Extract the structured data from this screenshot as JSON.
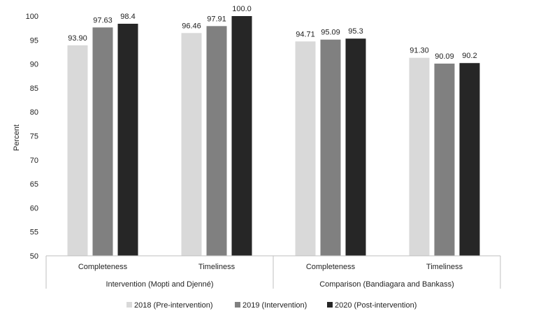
{
  "chart_data": {
    "type": "bar",
    "ylabel": "Percent",
    "ylim": [
      50,
      100
    ],
    "yticks": [
      "50",
      "55",
      "60",
      "65",
      "70",
      "75",
      "80",
      "85",
      "90",
      "95",
      "100"
    ],
    "groups": [
      {
        "label": "Intervention (Mopti and Djenné)",
        "categories": [
          "Completeness",
          "Timeliness"
        ]
      },
      {
        "label": "Comparison (Bandiagara and Bankass)",
        "categories": [
          "Completeness",
          "Timeliness"
        ]
      }
    ],
    "series": [
      {
        "name": "2018 (Pre-intervention)",
        "color": "#d9d9d9",
        "values": [
          93.9,
          96.46,
          94.71,
          91.3
        ],
        "labels": [
          "93.90",
          "96.46",
          "94.71",
          "91.30"
        ]
      },
      {
        "name": "2019 (Intervention)",
        "color": "#808080",
        "values": [
          97.63,
          97.91,
          95.09,
          90.09
        ],
        "labels": [
          "97.63",
          "97.91",
          "95.09",
          "90.09"
        ]
      },
      {
        "name": "2020 (Post-intervention)",
        "color": "#262626",
        "values": [
          98.4,
          100.0,
          95.3,
          90.2
        ],
        "labels": [
          "98.4",
          "100.0",
          "95.3",
          "90.2"
        ]
      }
    ],
    "legend_position": "bottom",
    "grid": false
  }
}
